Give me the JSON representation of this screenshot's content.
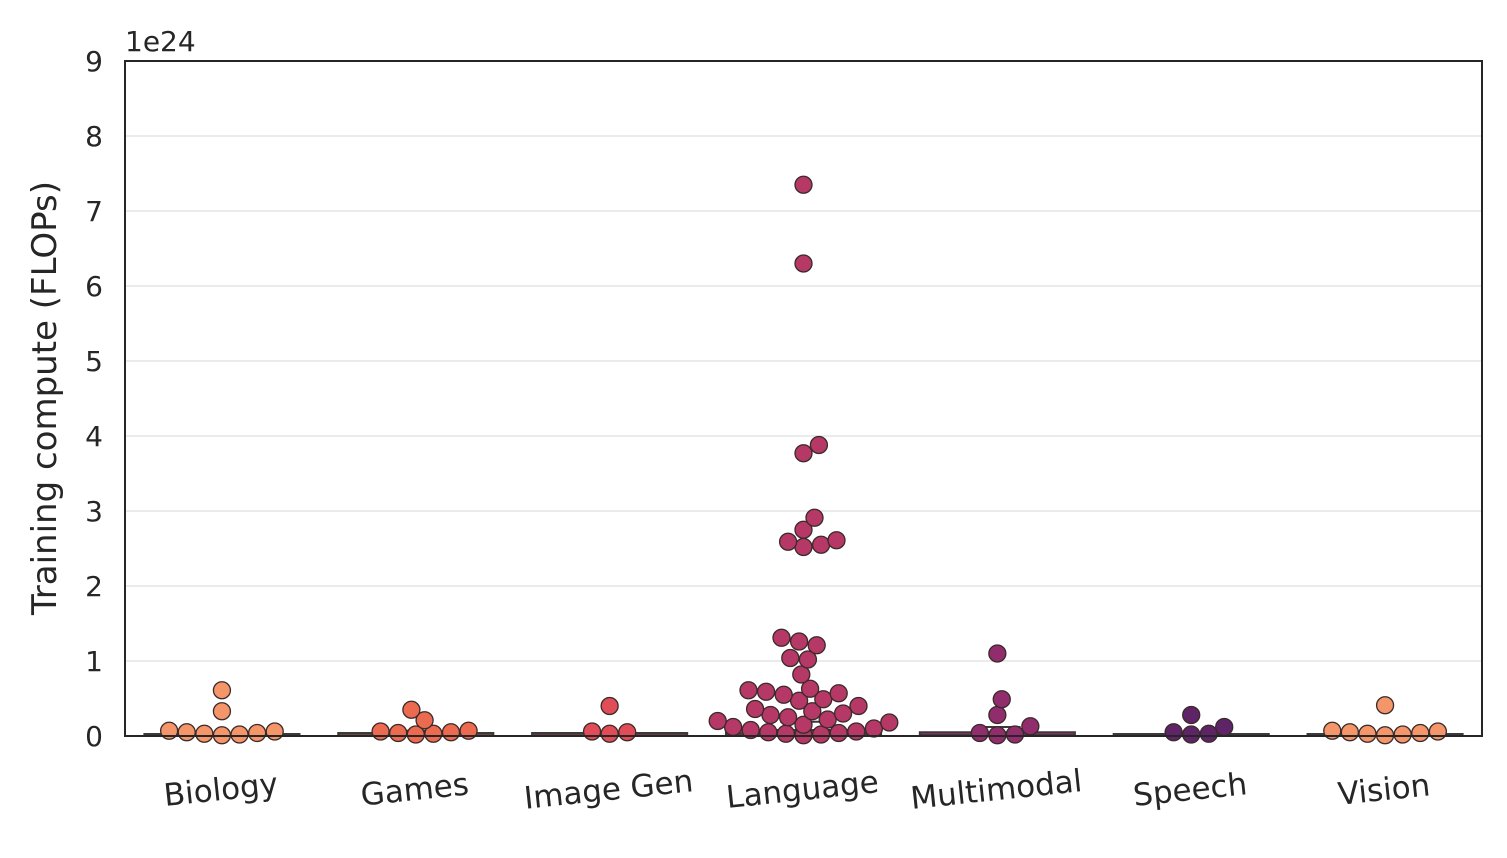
{
  "chart_data": {
    "type": "box-swarm",
    "ylabel": "Training compute (FLOPs)",
    "xlabel": "",
    "y_scale_label": "1e24",
    "y_multiplier": 1e+24,
    "ylim": [
      0,
      9
    ],
    "yticks": [
      "0",
      "1",
      "2",
      "3",
      "4",
      "5",
      "6",
      "7",
      "8",
      "9"
    ],
    "grid": "horizontal",
    "legend": "none",
    "categories": [
      "Biology",
      "Games",
      "Image Gen",
      "Language",
      "Multimodal",
      "Speech",
      "Vision"
    ],
    "colors": [
      "#f4956a",
      "#ec6a50",
      "#e04c57",
      "#b53866",
      "#912d6d",
      "#5f2467",
      "#f4956a"
    ],
    "box": {
      "Biology": {
        "q1": 0.0,
        "median": 0.0,
        "q3": 0.01,
        "whisker_high": 0.02
      },
      "Games": {
        "q1": 0.0,
        "median": 0.01,
        "q3": 0.04,
        "whisker_high": 0.07
      },
      "Image Gen": {
        "q1": 0.0,
        "median": 0.01,
        "q3": 0.04,
        "whisker_high": 0.05
      },
      "Language": {
        "q1": 0.0,
        "median": 0.03,
        "q3": 0.08,
        "whisker_high": 0.19
      },
      "Multimodal": {
        "q1": 0.0,
        "median": 0.01,
        "q3": 0.05,
        "whisker_high": 0.12
      },
      "Speech": {
        "q1": 0.0,
        "median": 0.0,
        "q3": 0.02,
        "whisker_high": 0.04
      },
      "Vision": {
        "q1": 0.0,
        "median": 0.0,
        "q3": 0.0,
        "whisker_high": 0.0
      }
    },
    "points": {
      "Biology": [
        0.61,
        0.33,
        0.07,
        0.06,
        0.05,
        0.04,
        0.03,
        0.02,
        0.01
      ],
      "Games": [
        0.35,
        0.21,
        0.07,
        0.06,
        0.05,
        0.04,
        0.03,
        0.02
      ],
      "Image Gen": [
        0.4,
        0.06,
        0.05,
        0.03
      ],
      "Language": [
        7.35,
        6.3,
        3.88,
        3.77,
        2.91,
        2.75,
        2.61,
        2.59,
        2.55,
        2.52,
        1.31,
        1.26,
        1.21,
        1.04,
        1.02,
        0.82,
        0.63,
        0.61,
        0.59,
        0.57,
        0.55,
        0.49,
        0.47,
        0.4,
        0.36,
        0.33,
        0.3,
        0.28,
        0.25,
        0.22,
        0.2,
        0.18,
        0.15,
        0.12,
        0.1,
        0.08,
        0.06,
        0.05,
        0.04,
        0.03,
        0.02,
        0.01
      ],
      "Multimodal": [
        1.1,
        0.49,
        0.28,
        0.13,
        0.04,
        0.02,
        0.01
      ],
      "Speech": [
        0.28,
        0.12,
        0.05,
        0.03,
        0.02
      ],
      "Vision": [
        0.41,
        0.07,
        0.06,
        0.05,
        0.04,
        0.03,
        0.02,
        0.01
      ]
    }
  }
}
